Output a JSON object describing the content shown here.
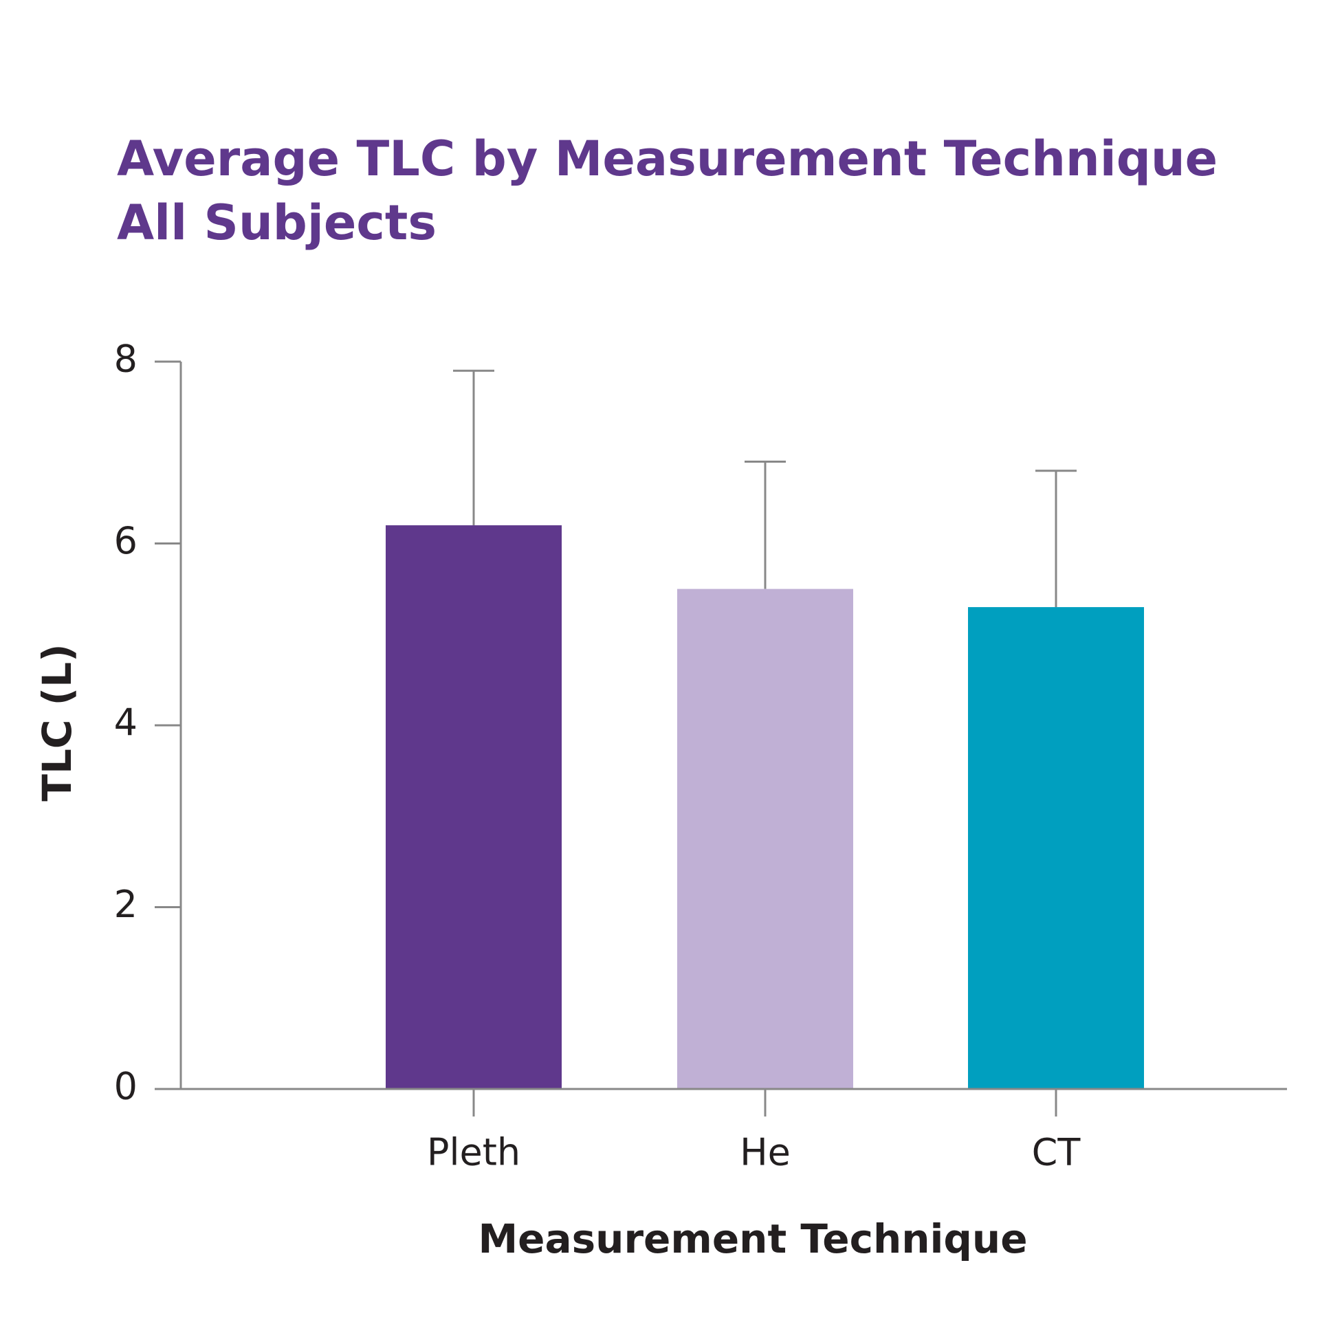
{
  "chart_data": {
    "type": "bar",
    "title": "Average TLC by Measurement Technique",
    "subtitle": "All Subjects",
    "x_label": "Measurement Technique",
    "y_label": "TLC (L)",
    "categories": [
      "Pleth",
      "He",
      "CT"
    ],
    "values": [
      6.2,
      5.5,
      5.3
    ],
    "errors": [
      1.7,
      1.4,
      1.5
    ],
    "colors": [
      "#5f388c",
      "#c0b0d5",
      "#009fbf"
    ],
    "error_color": "#888888",
    "ylim": [
      0,
      8
    ],
    "yticks": [
      0,
      2,
      4,
      6,
      8
    ],
    "grid": false
  }
}
